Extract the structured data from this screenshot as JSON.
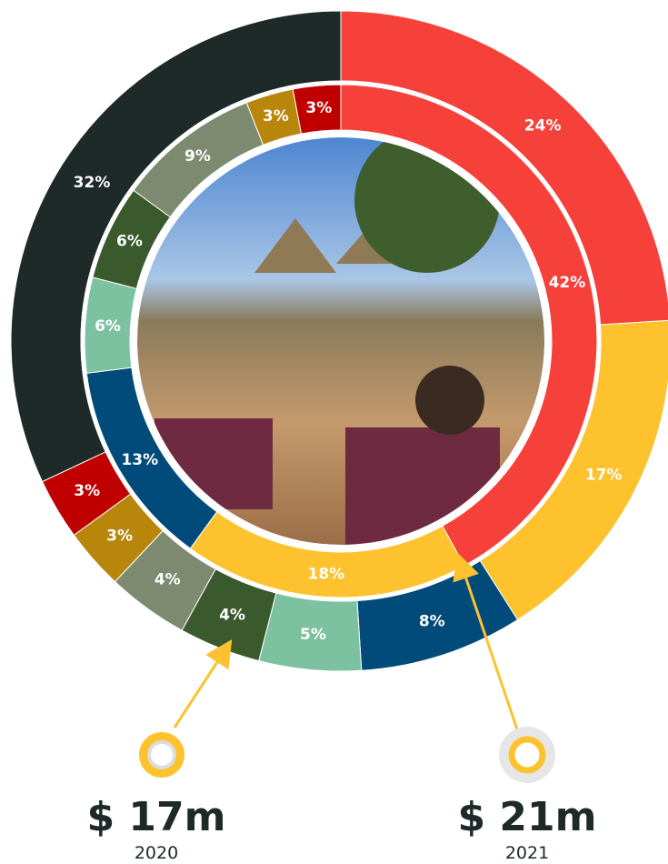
{
  "chart_data": {
    "type": "donut",
    "series": [
      {
        "values": [
          24,
          17,
          8,
          5,
          4,
          4,
          3,
          3,
          32
        ],
        "value_labels": [
          "24%",
          "17%",
          "8%",
          "5%",
          "4%",
          "4%",
          "3%",
          "3%",
          "32%"
        ],
        "colors": [
          "#f6403a",
          "#fdc22e",
          "#004b7a",
          "#7dc2a0",
          "#3a5a2e",
          "#7e8a70",
          "#b8860b",
          "#c00000",
          "#1e2a28"
        ]
      },
      {
        "values": [
          42,
          18,
          13,
          6,
          6,
          9,
          3,
          3
        ],
        "value_labels": [
          "42%",
          "18%",
          "13%",
          "6%",
          "6%",
          "9%",
          "3%",
          "3%"
        ],
        "colors": [
          "#f6403a",
          "#fdc22e",
          "#004b7a",
          "#7dc2a0",
          "#3a5a2e",
          "#7e8a70",
          "#b8860b",
          "#c00000"
        ]
      }
    ],
    "annotations": [
      {
        "amount": "$ 17m",
        "year": "2020"
      },
      {
        "amount": "$ 21m",
        "year": "2021"
      }
    ]
  }
}
